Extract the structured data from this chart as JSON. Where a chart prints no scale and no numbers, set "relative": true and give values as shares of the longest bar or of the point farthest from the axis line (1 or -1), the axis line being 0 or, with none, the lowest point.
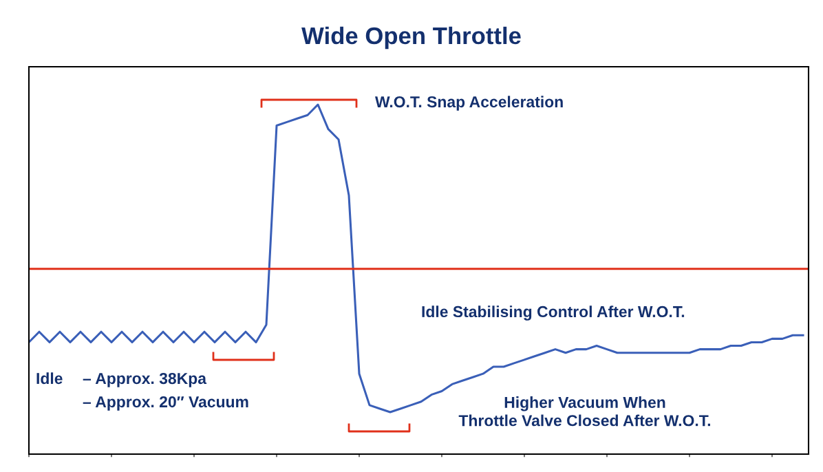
{
  "chart_data": {
    "type": "line",
    "title": "Wide Open Throttle",
    "relative": true,
    "categories": [
      null,
      null,
      null,
      null,
      null,
      null,
      null,
      null,
      null,
      null,
      null,
      null,
      null,
      null,
      null,
      null,
      null,
      null,
      null,
      null,
      null,
      null,
      null,
      null,
      null,
      null,
      null,
      null,
      null,
      null,
      null,
      null,
      null,
      null,
      null,
      null,
      null,
      null,
      null,
      null,
      null,
      null,
      null,
      null,
      null,
      null,
      null,
      null,
      null,
      null,
      null,
      null,
      null,
      null,
      null,
      null,
      null,
      null,
      null,
      null,
      null,
      null,
      null,
      null,
      null,
      null,
      null,
      null,
      null,
      null,
      null,
      null,
      null,
      null,
      null,
      null
    ],
    "series": [
      {
        "color": "#3a5fb8",
        "values": [
          0.32,
          0.35,
          0.32,
          0.35,
          0.32,
          0.35,
          0.32,
          0.35,
          0.32,
          0.35,
          0.32,
          0.35,
          0.32,
          0.35,
          0.32,
          0.35,
          0.32,
          0.35,
          0.32,
          0.35,
          0.32,
          0.35,
          0.32,
          0.37,
          0.94,
          0.95,
          0.96,
          0.97,
          1.0,
          0.93,
          0.9,
          0.74,
          0.23,
          0.14,
          0.13,
          0.12,
          0.13,
          0.14,
          0.15,
          0.17,
          0.18,
          0.2,
          0.21,
          0.22,
          0.23,
          0.25,
          0.25,
          0.26,
          0.27,
          0.28,
          0.29,
          0.3,
          0.29,
          0.3,
          0.3,
          0.31,
          0.3,
          0.29,
          0.29,
          0.29,
          0.29,
          0.29,
          0.29,
          0.29,
          0.29,
          0.3,
          0.3,
          0.3,
          0.31,
          0.31,
          0.32,
          0.32,
          0.33,
          0.33,
          0.34,
          0.34
        ]
      }
    ],
    "ref_lines": [
      {
        "axis": "y",
        "value": 0.53,
        "color": "#e0301a"
      }
    ],
    "annotations": [
      "W.O.T. Snap Acceleration",
      "Idle Stabilising Control After W.O.T.",
      "Idle",
      "– Approx. 38Kpa",
      "– Approx. 20″ Vacuum",
      "Higher Vacuum When\nThrottle Valve Closed After W.O.T."
    ],
    "grid": false,
    "legend": false,
    "marker": "none",
    "line_style": "solid"
  }
}
